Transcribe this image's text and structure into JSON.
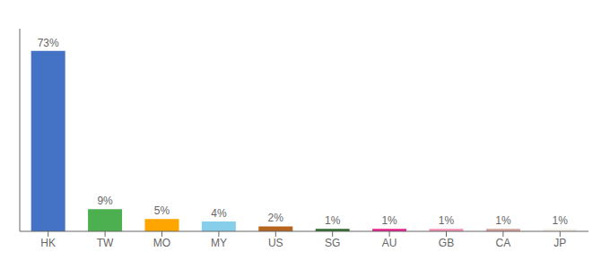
{
  "chart_data": {
    "type": "bar",
    "categories": [
      "HK",
      "TW",
      "MO",
      "MY",
      "US",
      "SG",
      "AU",
      "GB",
      "CA",
      "JP"
    ],
    "values": [
      73,
      9,
      5,
      4,
      2,
      1,
      1,
      1,
      1,
      1
    ],
    "value_labels": [
      "73%",
      "9%",
      "5%",
      "4%",
      "2%",
      "1%",
      "1%",
      "1%",
      "1%",
      "1%"
    ],
    "colors": [
      "#4472c4",
      "#4caf50",
      "#ffa500",
      "#87ceeb",
      "#b5651d",
      "#2d6a2d",
      "#e91e8c",
      "#f48fb1",
      "#d4a099",
      "#f5f0e8"
    ],
    "ylim": [
      0,
      82
    ],
    "grid": false,
    "data_labels": true,
    "tick_labels": "x"
  }
}
